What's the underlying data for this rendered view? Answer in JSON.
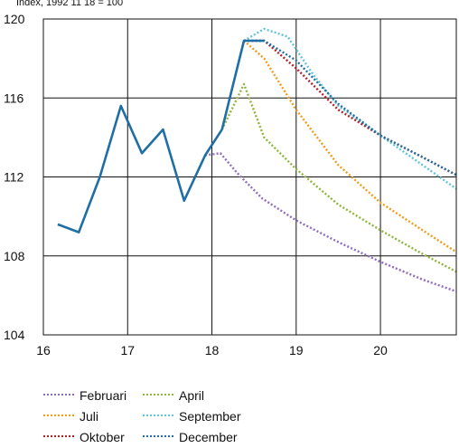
{
  "chart_data": {
    "type": "line",
    "subtitle": "Index, 1992 11 18 = 100",
    "xlabel": "",
    "ylabel": "",
    "xlim": [
      16,
      20.9
    ],
    "ylim": [
      104,
      120
    ],
    "x_ticks": [
      "16",
      "17",
      "18",
      "19",
      "20"
    ],
    "y_ticks": [
      "104",
      "108",
      "112",
      "116",
      "120"
    ],
    "grid": true,
    "legend_position": "bottom-left",
    "history": {
      "name": "",
      "color": "#1f6fa4",
      "points": [
        [
          16.17,
          109.6
        ],
        [
          16.42,
          109.2
        ],
        [
          16.67,
          112.0
        ],
        [
          16.92,
          115.6
        ],
        [
          17.17,
          113.2
        ],
        [
          17.42,
          114.4
        ],
        [
          17.67,
          110.8
        ],
        [
          17.92,
          113.1
        ],
        [
          18.12,
          114.4
        ]
      ]
    },
    "series": [
      {
        "name": "Februari",
        "color": "#8e6bbf",
        "points": [
          [
            17.92,
            113.1
          ],
          [
            18.1,
            113.2
          ],
          [
            18.3,
            112.2
          ],
          [
            18.6,
            110.9
          ],
          [
            19.0,
            109.8
          ],
          [
            19.5,
            108.7
          ],
          [
            20.0,
            107.7
          ],
          [
            20.5,
            106.8
          ],
          [
            20.9,
            106.2
          ]
        ]
      },
      {
        "name": "April",
        "color": "#8db53c",
        "points": [
          [
            18.12,
            114.4
          ],
          [
            18.38,
            116.7
          ],
          [
            18.62,
            114.0
          ],
          [
            19.0,
            112.4
          ],
          [
            19.5,
            110.6
          ],
          [
            20.0,
            109.3
          ],
          [
            20.5,
            108.1
          ],
          [
            20.9,
            107.2
          ]
        ]
      },
      {
        "name": "Juli",
        "color": "#f09a1a",
        "points": [
          [
            18.38,
            118.9
          ],
          [
            18.62,
            118.0
          ],
          [
            19.0,
            115.4
          ],
          [
            19.5,
            112.6
          ],
          [
            20.0,
            110.7
          ],
          [
            20.5,
            109.3
          ],
          [
            20.9,
            108.2
          ]
        ]
      },
      {
        "name": "September",
        "color": "#5fc4d9",
        "points": [
          [
            18.38,
            118.9
          ],
          [
            18.62,
            119.5
          ],
          [
            18.9,
            119.1
          ],
          [
            19.2,
            117.2
          ],
          [
            19.5,
            115.6
          ],
          [
            20.0,
            114.1
          ],
          [
            20.5,
            112.6
          ],
          [
            20.9,
            111.4
          ]
        ]
      },
      {
        "name": "Oktober",
        "color": "#b21f2d",
        "points": [
          [
            18.38,
            118.9
          ],
          [
            18.62,
            118.9
          ],
          [
            19.0,
            117.5
          ],
          [
            19.5,
            115.4
          ],
          [
            20.0,
            114.1
          ],
          [
            20.5,
            113.0
          ],
          [
            20.9,
            112.1
          ]
        ]
      },
      {
        "name": "December",
        "color": "#1f6fa4",
        "points": [
          [
            18.38,
            118.9
          ],
          [
            18.62,
            118.9
          ],
          [
            19.0,
            117.9
          ],
          [
            19.5,
            115.7
          ],
          [
            20.0,
            114.1
          ],
          [
            20.5,
            113.0
          ],
          [
            20.9,
            112.1
          ]
        ]
      }
    ],
    "solid_segment": [
      [
        18.12,
        114.4
      ],
      [
        18.38,
        118.9
      ],
      [
        18.62,
        118.9
      ]
    ]
  }
}
